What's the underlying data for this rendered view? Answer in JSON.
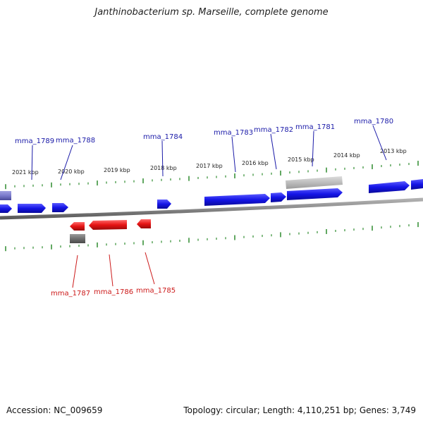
{
  "title": "Janthinobacterium sp. Marseille, complete genome",
  "footer": {
    "accession": "Accession: NC_009659",
    "stats": "Topology: circular; Length: 4,110,251 bp; Genes: 3,749"
  },
  "map": {
    "kbp_labels": [
      "2021 kbp",
      "2020 kbp",
      "2019 kbp",
      "2018 kbp",
      "2017 kbp",
      "2016 kbp",
      "2015 kbp",
      "2014 kbp",
      "2013 kbp"
    ],
    "forward_gene_labels": [
      "mma_1789",
      "mma_1788",
      "mma_1784",
      "mma_1783",
      "mma_1782",
      "mma_1781",
      "mma_1780"
    ],
    "reverse_gene_labels": [
      "mma_1787",
      "mma_1786",
      "mma_1785"
    ],
    "colors": {
      "forward_gene": "#1414e6",
      "reverse_gene": "#e61414",
      "backbone": "#8a8a8a",
      "tick": "#2e8b2e",
      "rna_gene": "#7a7acc",
      "pseudo_gene": "#9a9a9a"
    }
  }
}
